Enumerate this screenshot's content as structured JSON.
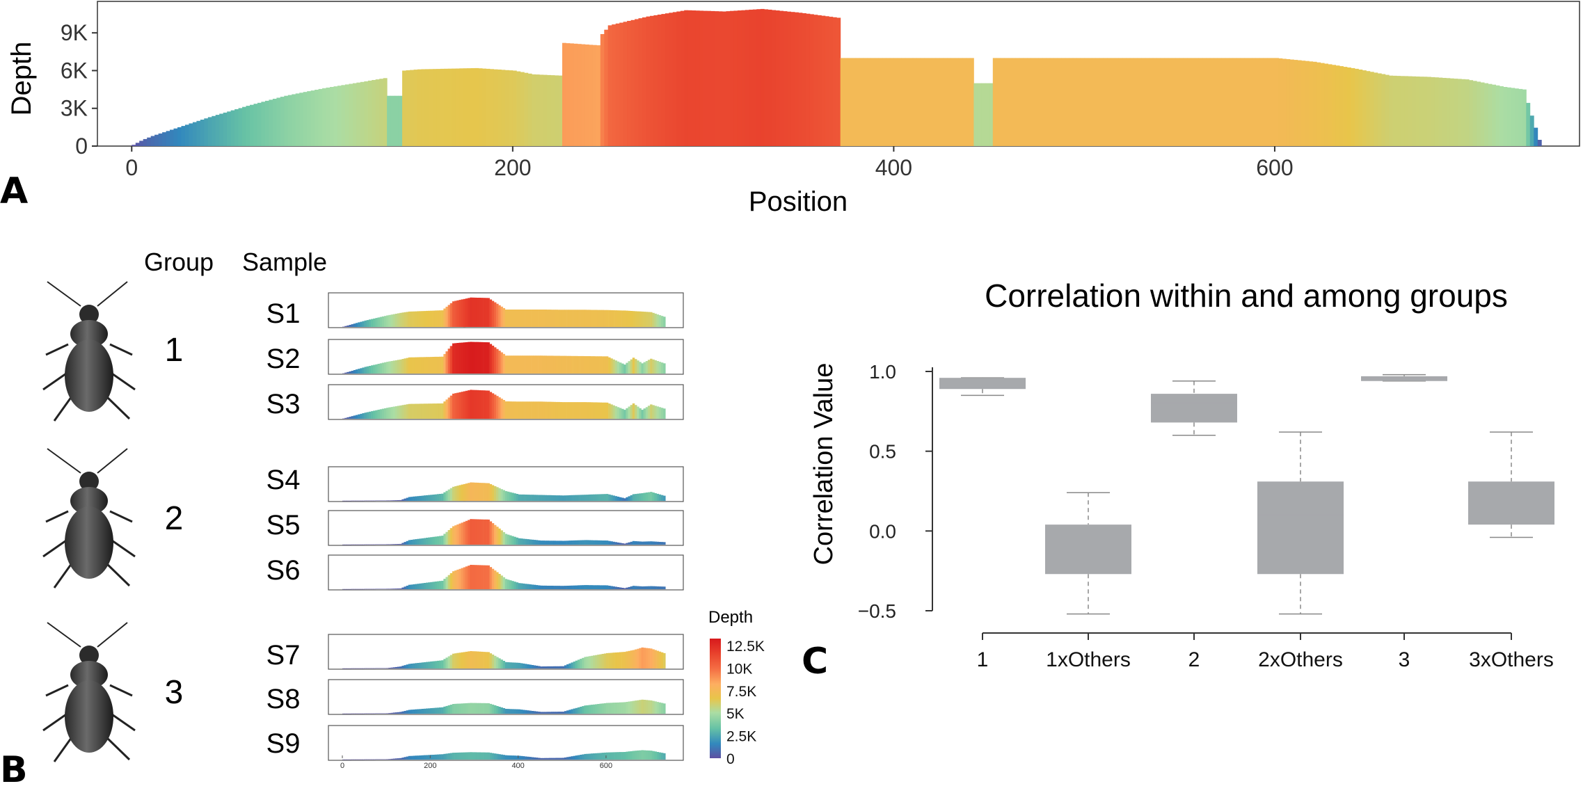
{
  "panel_labels": {
    "a": "A",
    "b": "B",
    "c": "C"
  },
  "panel_b": {
    "group_header": "Group",
    "sample_header": "Sample",
    "groups": [
      {
        "label": "1",
        "samples": [
          "S1",
          "S2",
          "S3"
        ]
      },
      {
        "label": "2",
        "samples": [
          "S4",
          "S5",
          "S6"
        ]
      },
      {
        "label": "3",
        "samples": [
          "S7",
          "S8",
          "S9"
        ]
      }
    ],
    "mini_axis_ticks": [
      "0",
      "200",
      "400",
      "600"
    ],
    "colorbar": {
      "title": "Depth",
      "ticks": [
        "12.5K",
        "10K",
        "7.5K",
        "5K",
        "2.5K",
        "0"
      ],
      "colors": [
        "#5e4fa2",
        "#3288bd",
        "#66c2a5",
        "#abdda4",
        "#e6f598",
        "#fee08b",
        "#fdae61",
        "#f46d43",
        "#d53e4f",
        "#e31a1c"
      ]
    }
  },
  "chart_data": [
    {
      "type": "bar",
      "id": "A",
      "xlabel": "Position",
      "ylabel": "Depth",
      "xlim": [
        -18,
        760
      ],
      "ylim": [
        0,
        11500
      ],
      "xticks": [
        0,
        200,
        400,
        600
      ],
      "xtick_labels": [
        "0",
        "200",
        "400",
        "600"
      ],
      "yticks": [
        0,
        3000,
        6000,
        9000
      ],
      "ytick_labels": [
        "0",
        "3K",
        "6K",
        "9K"
      ],
      "x": [
        0,
        5,
        10,
        20,
        40,
        60,
        80,
        100,
        120,
        132,
        133,
        141,
        142,
        150,
        180,
        200,
        210,
        225,
        226,
        245,
        246,
        250,
        270,
        290,
        310,
        330,
        350,
        370,
        371,
        380,
        440,
        441,
        450,
        451,
        500,
        600,
        620,
        640,
        660,
        680,
        700,
        720,
        730,
        733,
        738
      ],
      "depth": [
        100,
        500,
        800,
        1300,
        2300,
        3200,
        4000,
        4600,
        5100,
        5400,
        4000,
        4000,
        6000,
        6100,
        6200,
        6000,
        5700,
        5600,
        8200,
        8000,
        8900,
        9600,
        10300,
        10800,
        10700,
        10900,
        10600,
        10200,
        7000,
        7000,
        7000,
        5000,
        5000,
        7000,
        7000,
        7000,
        6700,
        6200,
        5600,
        5500,
        5300,
        4700,
        4500,
        2900,
        500
      ],
      "color_scale": {
        "min": 0,
        "max": 12500
      }
    },
    {
      "type": "bar",
      "id": "B",
      "note": "mini coverage profiles per sample (depth values, same position axis as A)",
      "x": [
        0,
        50,
        100,
        130,
        150,
        225,
        250,
        290,
        330,
        370,
        400,
        450,
        500,
        550,
        600,
        640,
        660,
        680,
        700,
        730
      ],
      "xlim": [
        0,
        760
      ],
      "ylim": [
        0,
        12500
      ],
      "series": [
        {
          "name": "S1",
          "depth": [
            100,
            2500,
            4500,
            5500,
            6000,
            6500,
            10000,
            11500,
            11300,
            6800,
            6800,
            6800,
            6700,
            6700,
            6600,
            6400,
            6200,
            6000,
            5800,
            4000
          ]
        },
        {
          "name": "S2",
          "depth": [
            100,
            2600,
            4600,
            5500,
            6300,
            6600,
            11800,
            12400,
            12200,
            7000,
            7000,
            7000,
            6900,
            6800,
            6700,
            3500,
            6200,
            4000,
            5800,
            4000
          ]
        },
        {
          "name": "S3",
          "depth": [
            100,
            2400,
            4300,
            5200,
            5800,
            6000,
            9800,
            11300,
            11000,
            6800,
            6700,
            6700,
            6500,
            6500,
            6300,
            3500,
            6000,
            3500,
            5600,
            4000
          ]
        },
        {
          "name": "S4",
          "depth": [
            50,
            100,
            150,
            300,
            1500,
            2800,
            5500,
            7200,
            6900,
            3800,
            2500,
            2300,
            2100,
            2400,
            2700,
            1000,
            2600,
            3000,
            3500,
            2000
          ]
        },
        {
          "name": "S5",
          "depth": [
            50,
            100,
            150,
            300,
            1800,
            3500,
            7200,
            10000,
            9800,
            4200,
            2500,
            1600,
            1500,
            1800,
            1600,
            400,
            1400,
            1200,
            1300,
            1000
          ]
        },
        {
          "name": "S6",
          "depth": [
            50,
            100,
            150,
            300,
            1700,
            3300,
            7000,
            9500,
            9300,
            4000,
            2400,
            1400,
            1300,
            1600,
            1500,
            400,
            1300,
            1100,
            1200,
            1000
          ]
        },
        {
          "name": "S7",
          "depth": [
            50,
            100,
            150,
            800,
            1800,
            3200,
            5800,
            6800,
            6400,
            2500,
            2200,
            800,
            900,
            4500,
            6000,
            6500,
            7200,
            8200,
            7800,
            6000
          ]
        },
        {
          "name": "S8",
          "depth": [
            50,
            100,
            150,
            700,
            1500,
            2500,
            3800,
            4200,
            4100,
            1900,
            1700,
            700,
            800,
            3200,
            4200,
            4500,
            5000,
            5500,
            5200,
            4000
          ]
        },
        {
          "name": "S9",
          "depth": [
            50,
            100,
            150,
            600,
            1400,
            2100,
            2700,
            2900,
            2800,
            1700,
            1500,
            600,
            700,
            2200,
            2800,
            3000,
            3400,
            3700,
            3500,
            2500
          ]
        }
      ]
    },
    {
      "type": "box",
      "id": "C",
      "title": "Correlation within and among groups",
      "ylabel": "Correlation Value",
      "ylim": [
        -0.5,
        1.0
      ],
      "yticks": [
        -0.5,
        0.0,
        0.5,
        1.0
      ],
      "ytick_labels": [
        "−0.5",
        "0.0",
        "0.5",
        "1.0"
      ],
      "categories": [
        "1",
        "1xOthers",
        "2",
        "2xOthers",
        "3",
        "3xOthers"
      ],
      "boxes": [
        {
          "whisker_low": 0.85,
          "q1": 0.89,
          "median": 0.93,
          "q3": 0.96,
          "whisker_high": 0.96
        },
        {
          "whisker_low": -0.52,
          "q1": -0.27,
          "median": -0.05,
          "q3": 0.04,
          "whisker_high": 0.24
        },
        {
          "whisker_low": 0.6,
          "q1": 0.68,
          "median": 0.8,
          "q3": 0.86,
          "whisker_high": 0.94
        },
        {
          "whisker_low": -0.52,
          "q1": -0.27,
          "median": 0.1,
          "q3": 0.31,
          "whisker_high": 0.62
        },
        {
          "whisker_low": 0.94,
          "q1": 0.94,
          "median": 0.96,
          "q3": 0.97,
          "whisker_high": 0.98
        },
        {
          "whisker_low": -0.04,
          "q1": 0.04,
          "median": 0.18,
          "q3": 0.31,
          "whisker_high": 0.62
        }
      ],
      "box_color": "#a7a9ac"
    }
  ]
}
